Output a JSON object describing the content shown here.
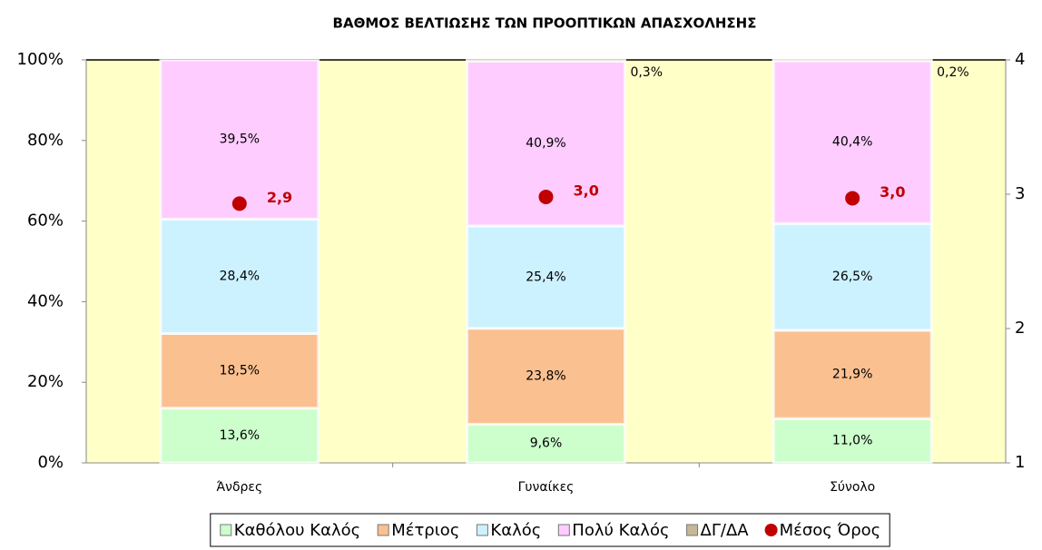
{
  "chart_data": {
    "type": "bar",
    "stacked": true,
    "title": "ΒΑΘΜΟΣ ΒΕΛΤΙΩΣΗΣ ΤΩΝ ΠΡΟΟΠΤΙΚΩΝ ΑΠΑΣΧΟΛΗΣΗΣ",
    "categories": [
      "Άνδρες",
      "Γυναίκες",
      "Σύνολο"
    ],
    "series": [
      {
        "name": "Καθόλου Καλός",
        "color": "#ccffcc",
        "values": [
          13.6,
          9.6,
          11.0
        ],
        "value_labels": [
          "13,6%",
          "9,6%",
          "11,0%"
        ]
      },
      {
        "name": "Μέτριος",
        "color": "#fac090",
        "values": [
          18.5,
          23.8,
          21.9
        ],
        "value_labels": [
          "18,5%",
          "23,8%",
          "21,9%"
        ]
      },
      {
        "name": "Καλός",
        "color": "#ccf2ff",
        "values": [
          28.4,
          25.4,
          26.5
        ],
        "value_labels": [
          "28,4%",
          "25,4%",
          "26,5%"
        ]
      },
      {
        "name": "Πολύ Καλός",
        "color": "#ffccff",
        "values": [
          39.5,
          40.9,
          40.4
        ],
        "value_labels": [
          "39,5%",
          "40,9%",
          "40,4%"
        ]
      },
      {
        "name": "ΔΓ/ΔΑ",
        "color": "#c4b896",
        "values": [
          null,
          0.3,
          0.2
        ],
        "value_labels": [
          null,
          "0,3%",
          "0,2%"
        ]
      },
      {
        "name": "Μέσος Όρος",
        "color": "#c00000",
        "type": "scatter",
        "axis": "y2",
        "values": [
          2.93,
          2.98,
          2.97
        ],
        "value_labels": [
          "2,9",
          "3,0",
          "3,0"
        ]
      }
    ],
    "ylim": [
      0,
      100
    ],
    "yticks": [
      {
        "value": 0,
        "label": "0%"
      },
      {
        "value": 20,
        "label": "20%"
      },
      {
        "value": 40,
        "label": "40%"
      },
      {
        "value": 60,
        "label": "60%"
      },
      {
        "value": 80,
        "label": "80%"
      },
      {
        "value": 100,
        "label": "100%"
      }
    ],
    "y2lim": [
      1,
      4
    ],
    "y2ticks": [
      1,
      2,
      3,
      4
    ],
    "plot_background": "#ffffc8"
  }
}
